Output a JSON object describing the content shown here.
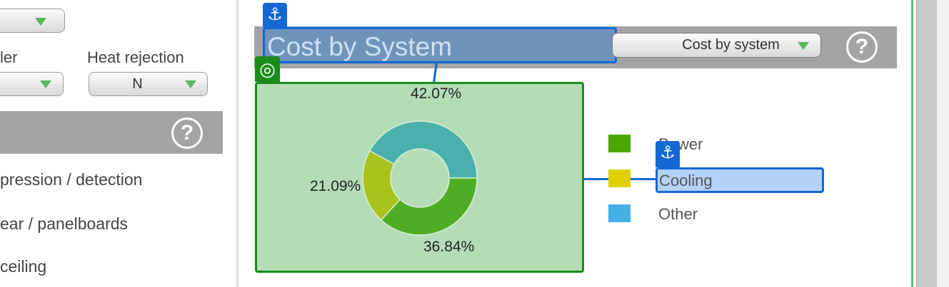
{
  "left_panel": {
    "top_select": {
      "value": ""
    },
    "cooler_label": "ler",
    "cooler_select": {
      "value": ""
    },
    "heat_rejection_label": "Heat rejection",
    "heat_rejection_select": {
      "value": "N"
    },
    "help_symbol": "?",
    "list": [
      "pression / detection",
      "ear / panelboards",
      " ceiling"
    ]
  },
  "cost_panel": {
    "title": "Cost by System",
    "view_select": {
      "value": "Cost by system"
    },
    "help_symbol": "?"
  },
  "chart_data": {
    "type": "pie",
    "donut": true,
    "slices": [
      {
        "label": "Power",
        "value": 42.07,
        "display": "42.07%",
        "color": "#4ab0ab"
      },
      {
        "label": "Cooling",
        "value": 21.09,
        "display": "21.09%",
        "color": "#a9c31d"
      },
      {
        "label": "Other",
        "value": 36.84,
        "display": "36.84%",
        "color": "#4fad23"
      }
    ],
    "legend": [
      {
        "label": "Power",
        "color": "#4ea600"
      },
      {
        "label": "Cooling",
        "color": "#e0d000"
      },
      {
        "label": "Other",
        "color": "#44b0e6"
      }
    ],
    "legend_position": "right"
  },
  "overlay": {
    "anchor_icon": "⚓",
    "target_icon": "◎"
  },
  "colors": {
    "header_gray": "#a4a4a6",
    "chart_bg": "#b4ddb6",
    "chart_border": "#1a8c1a",
    "selection_blue": "#1368d6",
    "title_highlight": "#7093bb"
  }
}
